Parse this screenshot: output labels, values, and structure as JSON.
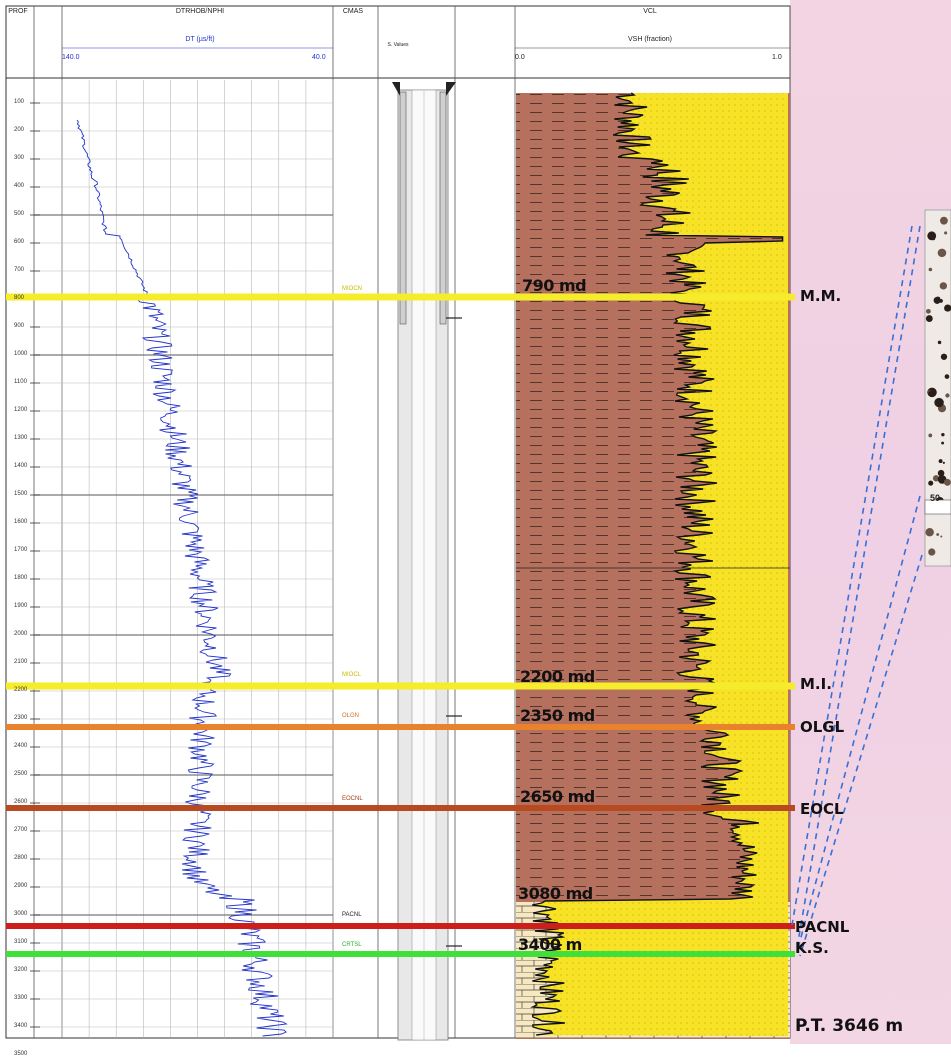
{
  "headers": {
    "depth_title": "PROF",
    "dt_title": "DTRHOB/NPHI",
    "dt_curve_label": "DT (µs/ft)",
    "dt_min": "140.0",
    "dt_max": "40.0",
    "form_title": "CMAS",
    "sch_label": "S. Values",
    "vsh_title": "VCL",
    "vsh_curve_label": "VSH (fraction)",
    "vsh_min": "0.0",
    "vsh_max": "1.0"
  },
  "depth_ticks": [
    "100",
    "200",
    "300",
    "400",
    "500",
    "600",
    "700",
    "800",
    "900",
    "1000",
    "1100",
    "1200",
    "1300",
    "1400",
    "1500",
    "1600",
    "1700",
    "1800",
    "1900",
    "2000",
    "2100",
    "2200",
    "2300",
    "2400",
    "2500",
    "2600",
    "2700",
    "2800",
    "2900",
    "3000",
    "3100",
    "3200",
    "3300",
    "3400",
    "3500"
  ],
  "boundaries": [
    {
      "depth_label": "790 md",
      "name": "M.M.",
      "color": "#f5ec2c",
      "track_label": "MIOCN"
    },
    {
      "depth_label": "2200 md",
      "name": "M.I.",
      "color": "#f5ec2c",
      "track_label": "MIOCL"
    },
    {
      "depth_label": "2350 md",
      "name": "OLGL",
      "color": "#e8822c",
      "track_label": "OLGN"
    },
    {
      "depth_label": "2650 md",
      "name": "EOCL",
      "color": "#b84a22",
      "track_label": "EOCNL"
    },
    {
      "depth_label": "3080 md",
      "name": "PACNL",
      "color": "#cc1f1a",
      "track_label": "PACNL"
    },
    {
      "depth_label": "3400 m",
      "name": "K.S.",
      "color": "#3fe03a",
      "track_label": "CRTSL"
    }
  ],
  "total_depth": "P.T. 3646 m",
  "inset_scale": "50",
  "colors": {
    "shale": "#b5705e",
    "sand": "#f7e226",
    "carbonate": "#f7e8c0",
    "curve": "#2233cc"
  }
}
